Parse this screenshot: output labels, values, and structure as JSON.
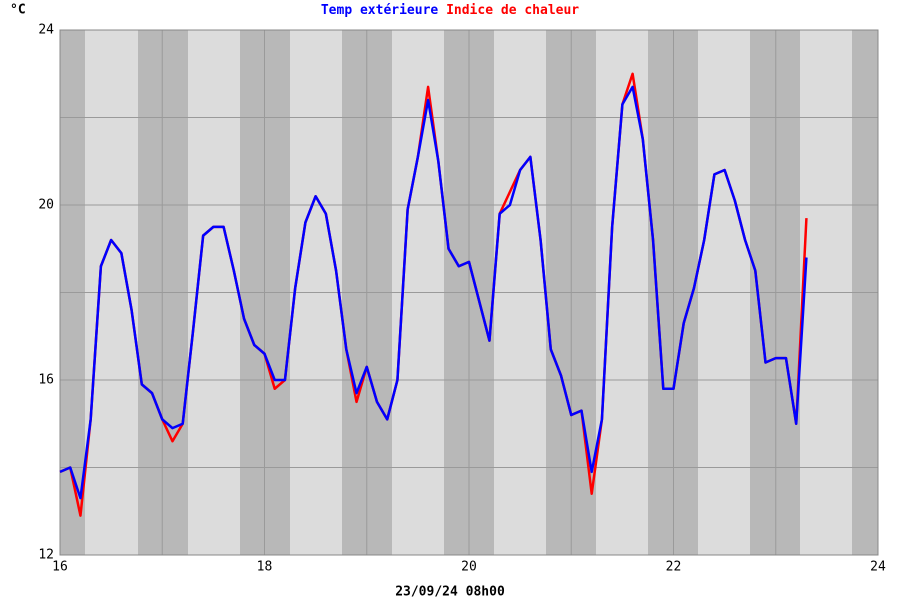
{
  "chart_data": {
    "type": "line",
    "ylabel": "°C",
    "xlabel": "23/09/24 08h00",
    "x": [
      16.0,
      16.1,
      16.2,
      16.3,
      16.4,
      16.5,
      16.6,
      16.7,
      16.8,
      16.9,
      17.0,
      17.1,
      17.2,
      17.3,
      17.4,
      17.5,
      17.6,
      17.7,
      17.8,
      17.9,
      18.0,
      18.1,
      18.2,
      18.3,
      18.4,
      18.5,
      18.6,
      18.7,
      18.8,
      18.9,
      19.0,
      19.1,
      19.2,
      19.3,
      19.4,
      19.5,
      19.6,
      19.7,
      19.8,
      19.9,
      20.0,
      20.1,
      20.2,
      20.3,
      20.4,
      20.5,
      20.6,
      20.7,
      20.8,
      20.9,
      21.0,
      21.1,
      21.2,
      21.3,
      21.4,
      21.5,
      21.6,
      21.7,
      21.8,
      21.9,
      22.0,
      22.1,
      22.2,
      22.3,
      22.4,
      22.5,
      22.6,
      22.7,
      22.8,
      22.9,
      23.0,
      23.1,
      23.2,
      23.3
    ],
    "series": [
      {
        "name": "Indice de chaleur",
        "color": "#ff0000",
        "values": [
          13.9,
          14.0,
          12.9,
          15.1,
          18.6,
          19.2,
          18.9,
          17.6,
          15.9,
          15.7,
          15.1,
          14.6,
          15.0,
          17.1,
          19.3,
          19.5,
          19.5,
          18.5,
          17.4,
          16.8,
          16.6,
          15.8,
          16.0,
          18.1,
          19.6,
          20.2,
          19.8,
          18.5,
          16.7,
          15.5,
          16.3,
          15.5,
          15.1,
          16.0,
          19.9,
          21.1,
          22.7,
          21.0,
          19.0,
          18.6,
          18.7,
          17.8,
          16.9,
          19.8,
          20.3,
          20.8,
          21.1,
          19.2,
          16.7,
          16.1,
          15.2,
          15.3,
          13.4,
          15.1,
          19.5,
          22.3,
          23.0,
          21.5,
          19.2,
          15.8,
          15.8,
          17.3,
          18.1,
          19.2,
          20.7,
          20.8,
          20.1,
          19.2,
          18.5,
          16.4,
          16.5,
          16.5,
          15.0,
          19.7
        ]
      },
      {
        "name": "Temp extérieure",
        "color": "#0000ff",
        "values": [
          13.9,
          14.0,
          13.3,
          15.1,
          18.6,
          19.2,
          18.9,
          17.6,
          15.9,
          15.7,
          15.1,
          14.9,
          15.0,
          17.1,
          19.3,
          19.5,
          19.5,
          18.5,
          17.4,
          16.8,
          16.6,
          16.0,
          16.0,
          18.1,
          19.6,
          20.2,
          19.8,
          18.5,
          16.7,
          15.7,
          16.3,
          15.5,
          15.1,
          16.0,
          19.9,
          21.1,
          22.4,
          21.0,
          19.0,
          18.6,
          18.7,
          17.8,
          16.9,
          19.8,
          20.0,
          20.8,
          21.1,
          19.2,
          16.7,
          16.1,
          15.2,
          15.3,
          13.9,
          15.1,
          19.5,
          22.3,
          22.7,
          21.5,
          19.2,
          15.8,
          15.8,
          17.3,
          18.1,
          19.2,
          20.7,
          20.8,
          20.1,
          19.2,
          18.5,
          16.4,
          16.5,
          16.5,
          15.0,
          18.8
        ]
      }
    ],
    "xlim": [
      16,
      24
    ],
    "xticks": [
      16,
      18,
      20,
      22,
      24
    ],
    "xminorticks": [
      17,
      19,
      21,
      23
    ],
    "ylim": [
      12,
      24
    ],
    "yticks": [
      12,
      16,
      20,
      24
    ],
    "yminorticks": [
      14,
      18,
      22
    ],
    "grid": true
  }
}
